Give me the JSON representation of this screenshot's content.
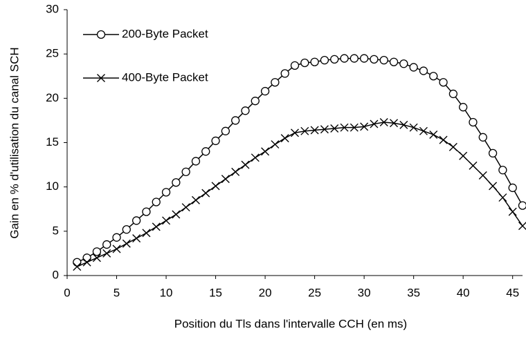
{
  "chart_data": {
    "type": "line",
    "xlabel": "Position du Tls dans l'intervalle CCH (en ms)",
    "ylabel": "Gain en % d'utilisation du canal SCH",
    "x": [
      1,
      2,
      3,
      4,
      5,
      6,
      7,
      8,
      9,
      10,
      11,
      12,
      13,
      14,
      15,
      16,
      17,
      18,
      19,
      20,
      21,
      22,
      23,
      24,
      25,
      26,
      27,
      28,
      29,
      30,
      31,
      32,
      33,
      34,
      35,
      36,
      37,
      38,
      39,
      40,
      41,
      42,
      43,
      44,
      45,
      46
    ],
    "series": [
      {
        "name": "200-Byte Packet",
        "color": "#000000",
        "marker": "circle",
        "values": [
          1.5,
          2.0,
          2.7,
          3.5,
          4.3,
          5.2,
          6.2,
          7.2,
          8.3,
          9.4,
          10.5,
          11.7,
          12.9,
          14.0,
          15.2,
          16.3,
          17.5,
          18.6,
          19.7,
          20.8,
          21.8,
          22.8,
          23.7,
          24.0,
          24.1,
          24.3,
          24.4,
          24.5,
          24.5,
          24.5,
          24.4,
          24.3,
          24.1,
          23.9,
          23.5,
          23.1,
          22.5,
          21.8,
          20.5,
          19.0,
          17.3,
          15.6,
          13.8,
          11.9,
          9.9,
          7.9
        ]
      },
      {
        "name": "400-Byte Packet",
        "color": "#000000",
        "marker": "x",
        "values": [
          1.0,
          1.5,
          2.0,
          2.5,
          3.0,
          3.6,
          4.2,
          4.8,
          5.5,
          6.2,
          6.9,
          7.7,
          8.5,
          9.3,
          10.1,
          10.9,
          11.7,
          12.5,
          13.3,
          14.0,
          14.8,
          15.5,
          16.1,
          16.3,
          16.4,
          16.5,
          16.6,
          16.7,
          16.7,
          16.8,
          17.1,
          17.3,
          17.2,
          17.0,
          16.7,
          16.3,
          15.9,
          15.3,
          14.5,
          13.5,
          12.4,
          11.3,
          10.1,
          8.8,
          7.2,
          5.6
        ]
      }
    ],
    "xlim": [
      0,
      46
    ],
    "xticks": [
      0,
      5,
      10,
      15,
      20,
      25,
      30,
      35,
      40,
      45
    ],
    "ylim": [
      0,
      30
    ],
    "yticks": [
      0,
      5,
      10,
      15,
      20,
      25,
      30
    ],
    "legend": "upper left"
  }
}
